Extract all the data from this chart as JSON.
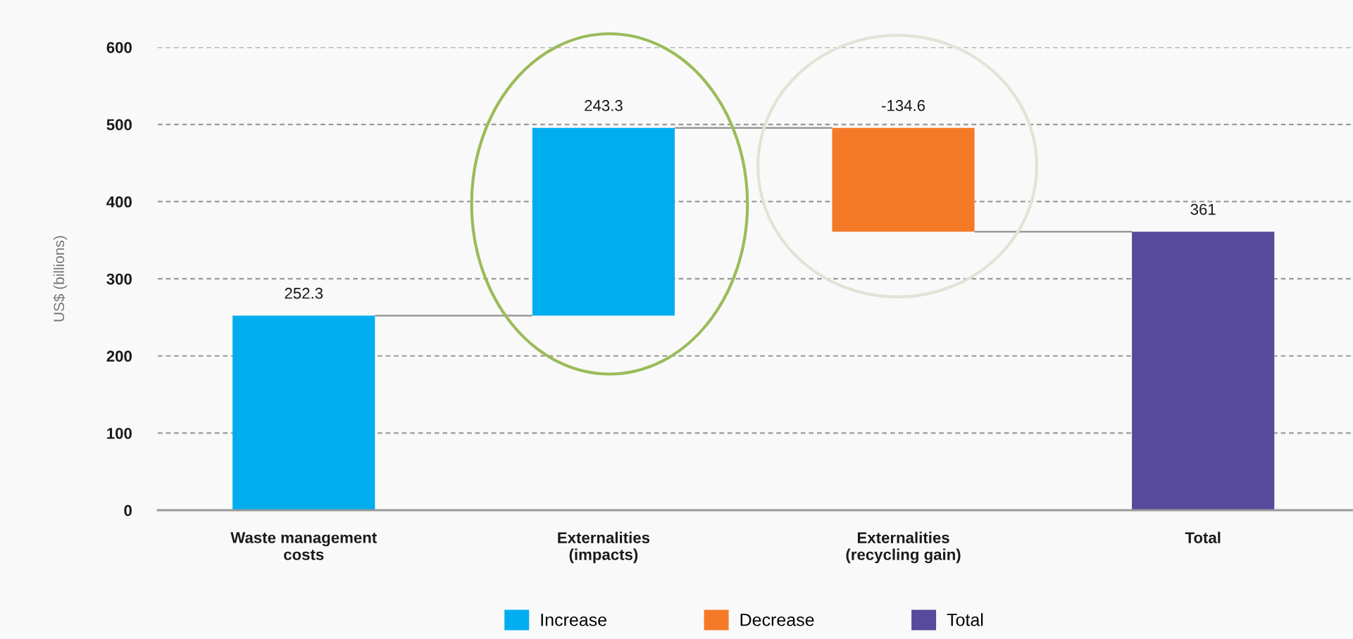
{
  "chart_data": {
    "type": "bar",
    "ylabel": "US$ (billions)",
    "categories": [
      "Waste management\ncosts",
      "Externalities\n(impacts)",
      "Externalities\n(recycling gain)",
      "Total"
    ],
    "series": [
      {
        "name": "Increase",
        "color": "#00aeef",
        "values": [
          252.3,
          243.3,
          null,
          null
        ],
        "base": [
          0,
          252.3,
          null,
          null
        ]
      },
      {
        "name": "Decrease",
        "color": "#f47a28",
        "values": [
          null,
          null,
          -134.6,
          null
        ],
        "base": [
          null,
          null,
          495.6,
          null
        ]
      },
      {
        "name": "Total",
        "color": "#574a9d",
        "values": [
          null,
          null,
          null,
          361
        ],
        "base": [
          null,
          null,
          null,
          0
        ]
      }
    ],
    "ylim": [
      0,
      600
    ],
    "yticks": [
      0,
      100,
      200,
      300,
      400,
      500,
      600
    ],
    "grid": "y",
    "legend": "bottom",
    "data_labels": true
  }
}
